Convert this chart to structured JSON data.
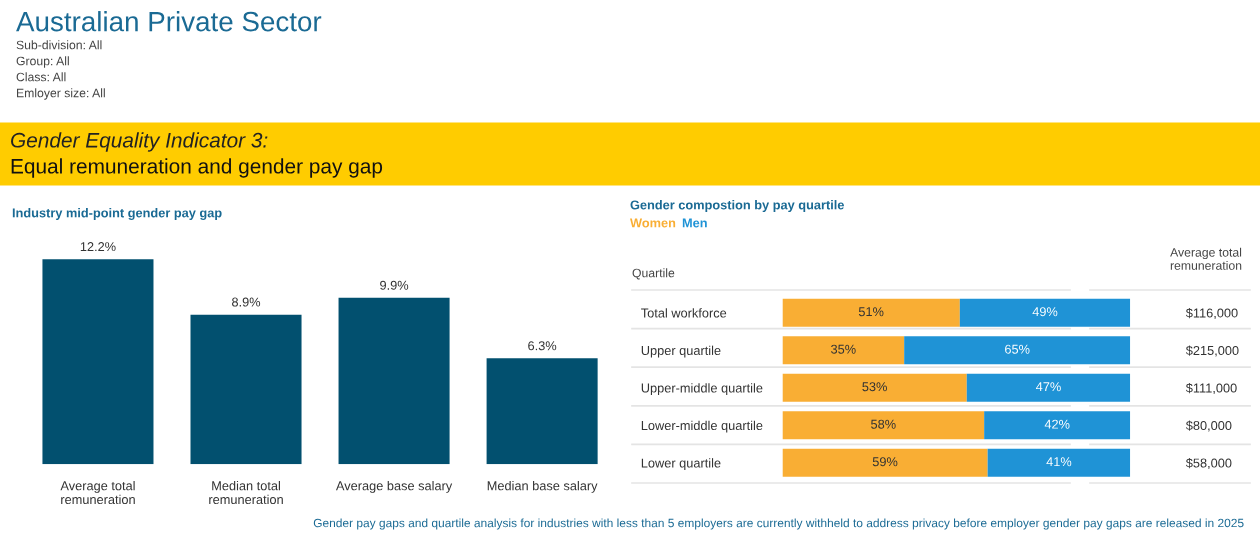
{
  "chart_data": [
    {
      "type": "bar",
      "title": "Industry mid-point gender pay gap",
      "annotations": [
        "Australian Private Sector",
        "Sub-division: All",
        "Group: All",
        "Class: All",
        "Emloyer size: All",
        "Gender Equality Indicator 3:",
        "Equal remuneration and gender pay gap"
      ],
      "categories": [
        "Average total\nremuneration",
        "Median total\nremuneration",
        "Average base salary",
        "Median base salary"
      ],
      "values": [
        12.2,
        8.9,
        9.9,
        6.3
      ],
      "color": "#02506f",
      "value_labels": [
        "12.2%",
        "8.9%",
        "9.9%",
        "6.3%"
      ],
      "tick_labels": "x",
      "grid": false
    },
    {
      "type": "bar",
      "orientation": "horizontal",
      "stacked": true,
      "title": "Gender compostion by pay quartile",
      "ylabel": "Quartile",
      "y2label": "Average total\nremuneration",
      "categories": [
        "Total workforce",
        "Upper quartile",
        "Upper-middle quartile",
        "Lower-middle quartile",
        "Lower quartile"
      ],
      "y2_categories": [
        "$116,000",
        "$215,000",
        "$111,000",
        "$80,000",
        "$58,000"
      ],
      "series": [
        {
          "name": "Women",
          "color": "#f9ae34",
          "values": [
            51,
            35,
            53,
            58,
            59
          ],
          "value_labels": [
            "51%",
            "35%",
            "53%",
            "58%",
            "59%"
          ]
        },
        {
          "name": "Men",
          "color": "#1f93d6",
          "values": [
            49,
            65,
            47,
            42,
            41
          ],
          "value_labels": [
            "49%",
            "65%",
            "47%",
            "42%",
            "41%"
          ]
        }
      ],
      "legend": "top left",
      "tick_labels": "y",
      "grid": false,
      "annotations": [
        "Gender pay gaps and quartile analysis for industries with less than 5 employers are currently withheld to address privacy before employer gender pay gaps are released in 2025"
      ]
    }
  ]
}
